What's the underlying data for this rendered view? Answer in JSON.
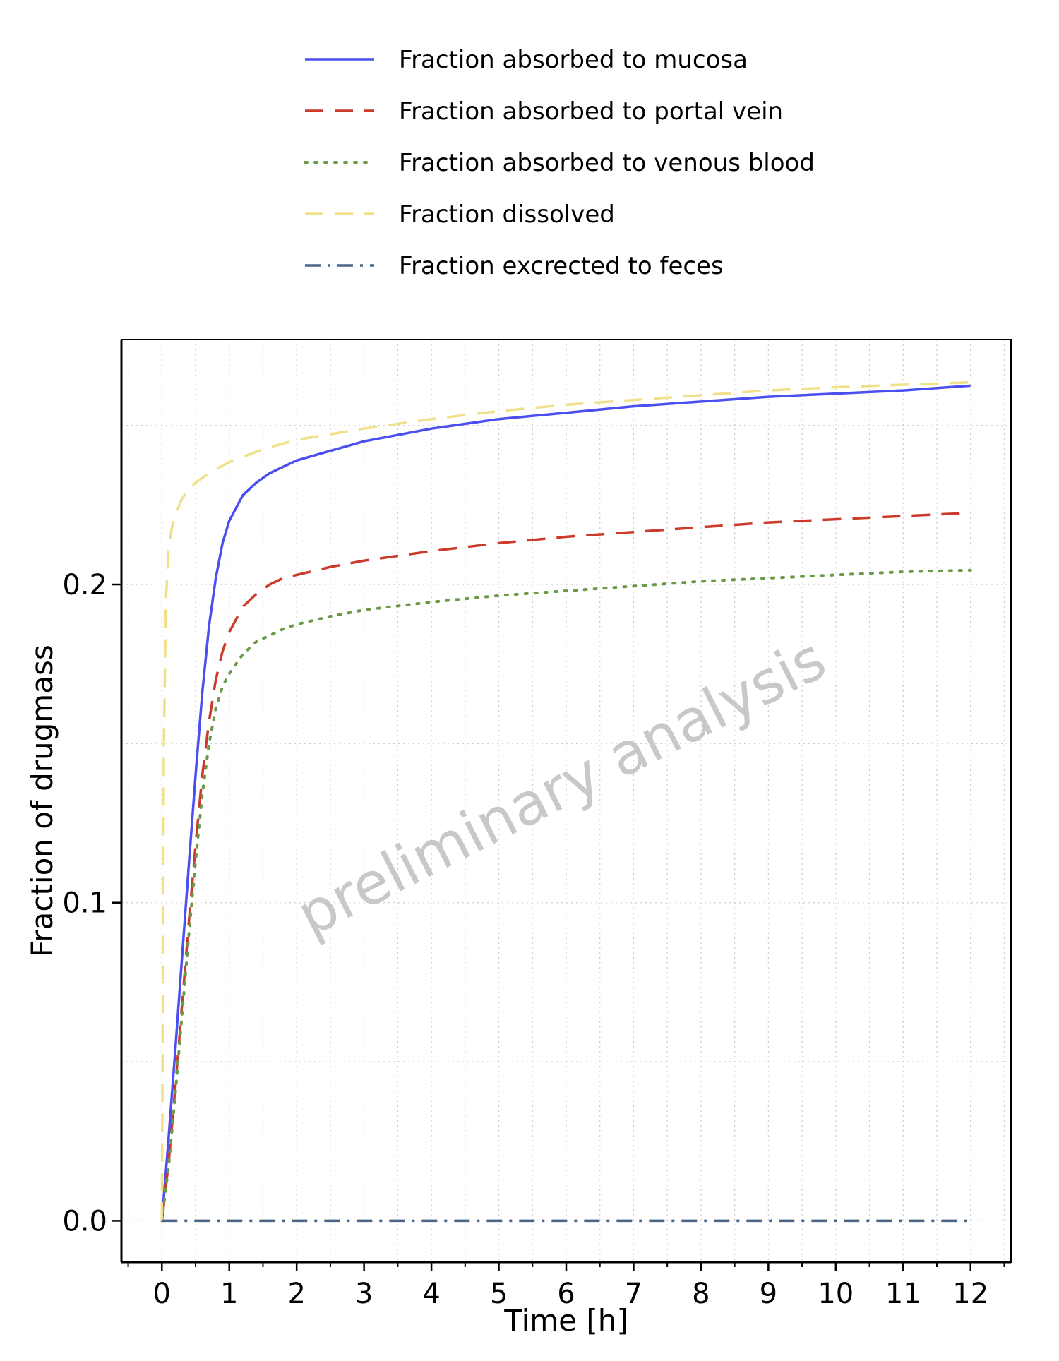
{
  "chart_data": {
    "type": "line",
    "title": "",
    "xlabel": "Time [h]",
    "ylabel": "Fraction of drugmass",
    "xlim": [
      -0.6,
      12.6
    ],
    "ylim": [
      -0.013,
      0.277
    ],
    "x_ticks": [
      0,
      1,
      2,
      3,
      4,
      5,
      6,
      7,
      8,
      9,
      10,
      11,
      12
    ],
    "x_tick_labels": [
      "0",
      "1",
      "2",
      "3",
      "4",
      "5",
      "6",
      "7",
      "8",
      "9",
      "10",
      "11",
      "12"
    ],
    "y_ticks": [
      0.0,
      0.1,
      0.2
    ],
    "y_tick_labels": [
      "0.0",
      "0.1",
      "0.2"
    ],
    "y_minor_gridlines": [
      0.05,
      0.15,
      0.25
    ],
    "x_minor_step": 0.5,
    "grid": true,
    "legend_position": "top",
    "watermark": "preliminary analysis",
    "series": [
      {
        "name": "Fraction absorbed to mucosa",
        "color": "#4b4ff0",
        "style": "solid",
        "x": [
          0,
          0.1,
          0.2,
          0.3,
          0.4,
          0.5,
          0.6,
          0.7,
          0.8,
          0.9,
          1.0,
          1.2,
          1.4,
          1.6,
          1.8,
          2,
          2.5,
          3,
          4,
          5,
          6,
          7,
          8,
          9,
          10,
          11,
          12
        ],
        "y": [
          0,
          0.026,
          0.054,
          0.083,
          0.112,
          0.14,
          0.166,
          0.187,
          0.202,
          0.213,
          0.22,
          0.228,
          0.232,
          0.235,
          0.237,
          0.239,
          0.242,
          0.245,
          0.249,
          0.252,
          0.254,
          0.256,
          0.2575,
          0.259,
          0.26,
          0.261,
          0.2625
        ]
      },
      {
        "name": "Fraction absorbed to portal vein",
        "color": "#cc3a2c",
        "style": "dashed",
        "x": [
          0,
          0.1,
          0.2,
          0.3,
          0.4,
          0.5,
          0.6,
          0.7,
          0.8,
          0.9,
          1.0,
          1.2,
          1.4,
          1.6,
          1.8,
          2,
          2.5,
          3,
          4,
          5,
          6,
          7,
          8,
          9,
          10,
          11,
          12
        ],
        "y": [
          0,
          0.018,
          0.042,
          0.068,
          0.094,
          0.118,
          0.14,
          0.157,
          0.17,
          0.179,
          0.185,
          0.193,
          0.197,
          0.2,
          0.202,
          0.203,
          0.2055,
          0.2075,
          0.2105,
          0.213,
          0.215,
          0.2165,
          0.218,
          0.2195,
          0.2205,
          0.2215,
          0.2225
        ]
      },
      {
        "name": "Fraction absorbed to venous blood",
        "color": "#6a9a48",
        "style": "dotted",
        "x": [
          0,
          0.1,
          0.2,
          0.3,
          0.4,
          0.5,
          0.6,
          0.7,
          0.8,
          0.9,
          1.0,
          1.2,
          1.4,
          1.6,
          1.8,
          2,
          2.5,
          3,
          4,
          5,
          6,
          7,
          8,
          9,
          10,
          11,
          12
        ],
        "y": [
          0,
          0.017,
          0.04,
          0.065,
          0.09,
          0.113,
          0.134,
          0.15,
          0.161,
          0.168,
          0.172,
          0.178,
          0.182,
          0.184,
          0.186,
          0.1875,
          0.19,
          0.192,
          0.1945,
          0.1965,
          0.198,
          0.1995,
          0.201,
          0.202,
          0.203,
          0.204,
          0.2045
        ]
      },
      {
        "name": "Fraction dissolved",
        "color": "#f0e08a",
        "style": "dashed",
        "x": [
          0,
          0.03,
          0.06,
          0.1,
          0.15,
          0.2,
          0.3,
          0.4,
          0.5,
          0.7,
          1.0,
          1.5,
          2,
          3,
          4,
          5,
          6,
          7,
          8,
          9,
          10,
          11,
          12
        ],
        "y": [
          0,
          0.15,
          0.195,
          0.211,
          0.218,
          0.222,
          0.227,
          0.23,
          0.232,
          0.235,
          0.2385,
          0.2425,
          0.2455,
          0.249,
          0.252,
          0.2545,
          0.2565,
          0.258,
          0.2595,
          0.261,
          0.262,
          0.2628,
          0.2635
        ]
      },
      {
        "name": "Fraction excrected to feces",
        "color": "#4a6585",
        "style": "dashdot",
        "x": [
          0,
          12
        ],
        "y": [
          0,
          0
        ]
      }
    ]
  }
}
